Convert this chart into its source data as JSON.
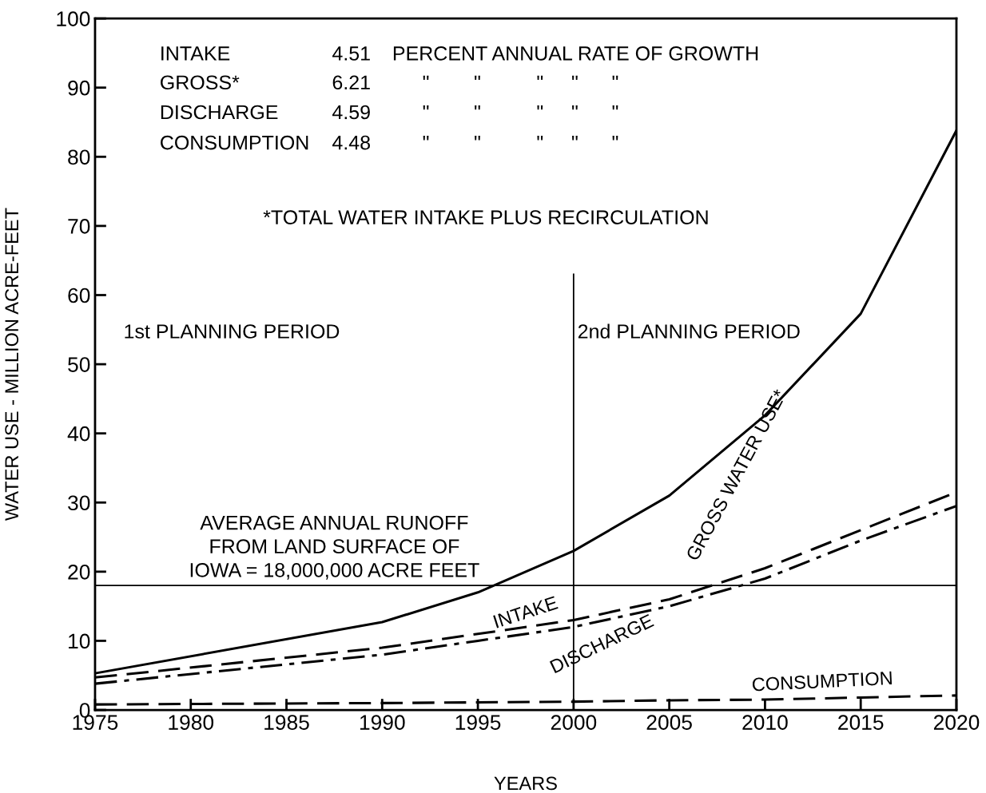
{
  "chart_data": {
    "type": "line",
    "xlabel": "YEARS",
    "ylabel": "WATER USE - MILLION ACRE-FEET",
    "x": [
      1975,
      1990,
      1995,
      2000,
      2005,
      2010,
      2015,
      2020
    ],
    "series": [
      {
        "name": "GROSS WATER USE*",
        "color": "#000000",
        "line_style": "solid",
        "values": [
          5.3,
          12.7,
          17,
          23,
          31,
          42.6,
          57.3,
          83.8
        ]
      },
      {
        "name": "INTAKE",
        "color": "#000000",
        "line_style": "dashed",
        "values": [
          4.7,
          9,
          11,
          13,
          16,
          20.5,
          26,
          31.5
        ]
      },
      {
        "name": "DISCHARGE",
        "color": "#000000",
        "line_style": "dashdot",
        "values": [
          3.8,
          8,
          10,
          12,
          15,
          19,
          24.5,
          29.5
        ]
      },
      {
        "name": "CONSUMPTION",
        "color": "#000000",
        "line_style": "dashed",
        "values": [
          0.8,
          1,
          1.1,
          1.2,
          1.4,
          1.5,
          1.8,
          2.1
        ]
      }
    ],
    "xlim": [
      1975,
      2020
    ],
    "xticks": [
      1975,
      1980,
      1985,
      1990,
      1995,
      2000,
      2005,
      2010,
      2015,
      2020
    ],
    "ylim": [
      0,
      100
    ],
    "yticks": [
      0,
      10,
      20,
      30,
      40,
      50,
      60,
      70,
      80,
      90,
      100
    ],
    "grid": false,
    "marker": "none",
    "ref_lines": [
      {
        "axis": "y",
        "value": 18,
        "label": "AVERAGE ANNUAL RUNOFF\nFROM LAND SURFACE OF\nIOWA = 18,000,000 ACRE FEET",
        "color": "#000000"
      },
      {
        "axis": "x",
        "value": 2000,
        "label": null,
        "color": "#000000"
      }
    ],
    "annotations": [
      "INTAKE",
      "4.51",
      "PERCENT ANNUAL RATE OF GROWTH",
      "GROSS*",
      "6.21",
      "\"        \"          \"     \"      \"",
      "DISCHARGE",
      "4.59",
      "\"        \"          \"     \"      \"",
      "CONSUMPTION",
      "4.48",
      "\"        \"          \"     \"      \"",
      "*TOTAL WATER INTAKE PLUS RECIRCULATION",
      "1st PLANNING PERIOD",
      "2nd PLANNING PERIOD"
    ]
  }
}
